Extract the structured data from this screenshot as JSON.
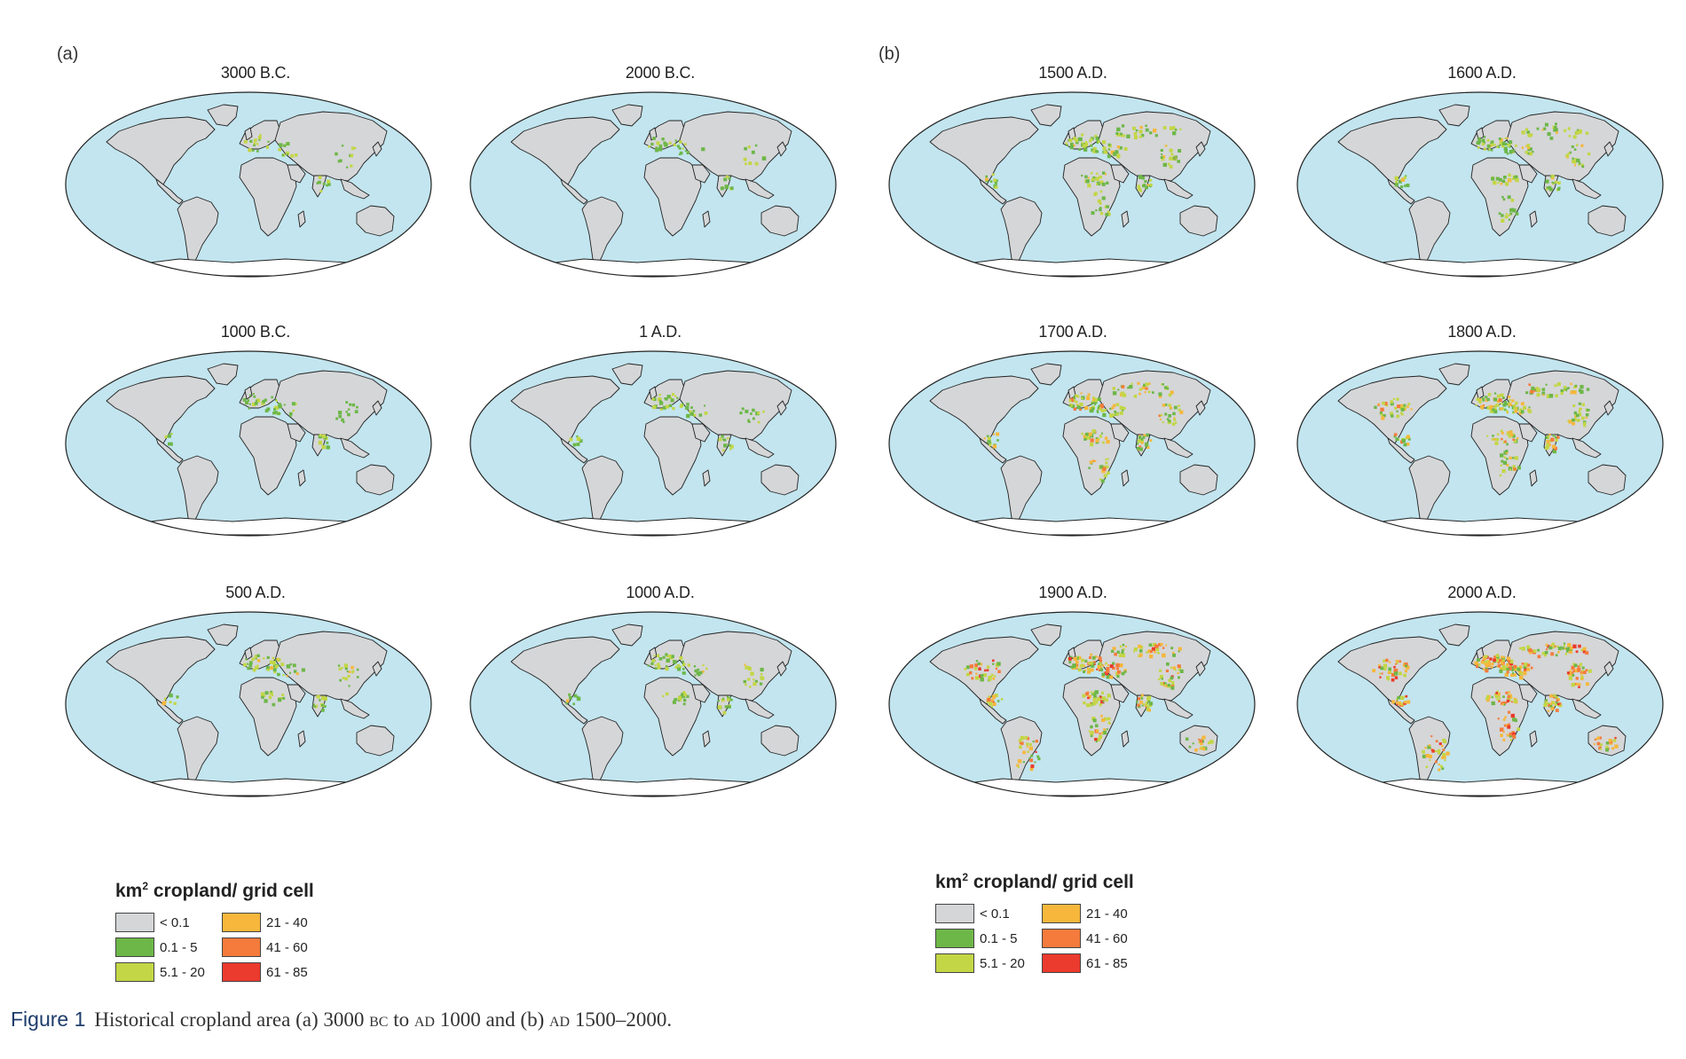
{
  "panels": [
    {
      "letter": "(a)"
    },
    {
      "letter": "(b)"
    }
  ],
  "maps": [
    {
      "title": "3000 B.C.",
      "intensity": 1
    },
    {
      "title": "2000 B.C.",
      "intensity": 1
    },
    {
      "title": "1000 B.C.",
      "intensity": 2
    },
    {
      "title": "1 A.D.",
      "intensity": 2
    },
    {
      "title": "500 A.D.",
      "intensity": 3
    },
    {
      "title": "1000 A.D.",
      "intensity": 3
    },
    {
      "title": "1500 A.D.",
      "intensity": 4
    },
    {
      "title": "1600 A.D.",
      "intensity": 4
    },
    {
      "title": "1700 A.D.",
      "intensity": 5
    },
    {
      "title": "1800 A.D.",
      "intensity": 6
    },
    {
      "title": "1900 A.D.",
      "intensity": 7
    },
    {
      "title": "2000 A.D.",
      "intensity": 8
    }
  ],
  "legend": {
    "title_prefix": "km",
    "title_sup": "2",
    "title_rest": " cropland/ grid cell",
    "items": [
      {
        "label": "< 0.1",
        "color": "#d5d6d8"
      },
      {
        "label": "21 - 40",
        "color": "#f6b73c"
      },
      {
        "label": "0.1 - 5",
        "color": "#6db748"
      },
      {
        "label": "41 - 60",
        "color": "#f47b3c"
      },
      {
        "label": "5.1 - 20",
        "color": "#c3d646"
      },
      {
        "label": "61 - 85",
        "color": "#eb3a2e"
      }
    ]
  },
  "caption": {
    "figure_label": "Figure 1",
    "text_1": "Historical cropland area (a) 3000 ",
    "bc": "bc",
    "text_2": " to ",
    "ad1": "ad",
    "text_3": " 1000 and (b) ",
    "ad2": "ad",
    "text_4": " 1500–2000."
  },
  "colors": {
    "ocean": "#c2e5ef",
    "land": "#d5d6d8",
    "outline": "#222222"
  }
}
